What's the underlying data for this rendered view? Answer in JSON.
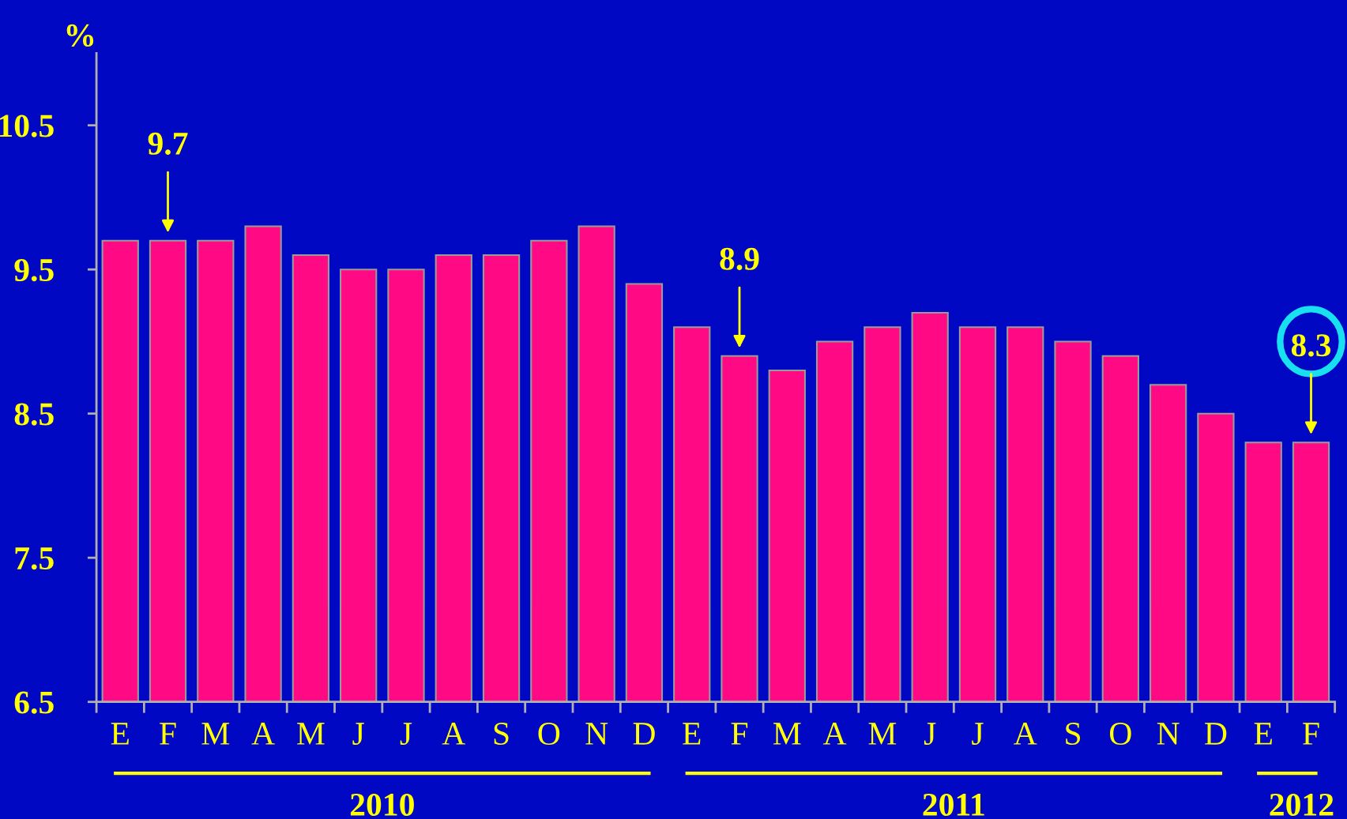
{
  "chart_data": {
    "type": "bar",
    "ylabel": "%",
    "categories": [
      "E",
      "F",
      "M",
      "A",
      "M",
      "J",
      "J",
      "A",
      "S",
      "O",
      "N",
      "D",
      "E",
      "F",
      "M",
      "A",
      "M",
      "J",
      "J",
      "A",
      "S",
      "O",
      "N",
      "D",
      "E",
      "F"
    ],
    "values": [
      9.7,
      9.7,
      9.7,
      9.8,
      9.6,
      9.5,
      9.5,
      9.6,
      9.6,
      9.7,
      9.8,
      9.4,
      9.1,
      8.9,
      8.8,
      9.0,
      9.1,
      9.2,
      9.1,
      9.1,
      9.0,
      8.9,
      8.7,
      8.5,
      8.3,
      8.3
    ],
    "value_labels": [
      null,
      "9.7",
      null,
      null,
      null,
      null,
      null,
      null,
      null,
      null,
      null,
      null,
      null,
      "8.9",
      null,
      null,
      null,
      null,
      null,
      null,
      null,
      null,
      null,
      null,
      null,
      "8.3"
    ],
    "color": "#ff0a84",
    "ylim": [
      6.5,
      11
    ],
    "yticks": [
      6.5,
      7.5,
      8.5,
      9.5,
      10.5
    ],
    "grid": false,
    "legend": false,
    "annotations": [
      "2010",
      "2011",
      "2012"
    ]
  }
}
